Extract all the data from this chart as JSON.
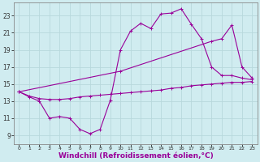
{
  "background_color": "#d0ecf0",
  "grid_color": "#c0dde0",
  "line_color": "#990099",
  "xlabel": "Windchill (Refroidissement éolien,°C)",
  "xlabel_fontsize": 6.5,
  "ytick_values": [
    9,
    11,
    13,
    15,
    17,
    19,
    21,
    23
  ],
  "xlim": [
    -0.5,
    23.5
  ],
  "ylim": [
    8.0,
    24.5
  ],
  "xtick_values": [
    0,
    1,
    2,
    3,
    4,
    5,
    6,
    7,
    8,
    9,
    10,
    11,
    12,
    13,
    14,
    15,
    16,
    17,
    18,
    19,
    20,
    21,
    22,
    23
  ],
  "lines": [
    {
      "x": [
        0,
        1,
        2,
        3,
        4,
        5,
        6,
        7,
        8,
        9,
        10,
        11,
        12,
        13,
        14,
        15,
        16,
        17,
        18,
        19,
        20,
        21,
        22,
        23
      ],
      "y": [
        14.1,
        13.6,
        13.3,
        13.2,
        13.2,
        13.3,
        13.5,
        13.6,
        13.7,
        13.8,
        13.9,
        14.0,
        14.1,
        14.2,
        14.3,
        14.5,
        14.6,
        14.8,
        14.9,
        15.0,
        15.1,
        15.2,
        15.2,
        15.3
      ]
    },
    {
      "x": [
        0,
        1,
        2,
        3,
        4,
        5,
        6,
        7,
        8,
        9,
        10,
        11,
        12,
        13,
        14,
        15,
        16,
        17,
        18,
        19,
        20,
        21,
        22,
        23
      ],
      "y": [
        14.1,
        13.5,
        13.0,
        11.0,
        11.2,
        11.0,
        9.7,
        9.2,
        9.7,
        13.1,
        19.0,
        21.2,
        22.1,
        21.5,
        23.2,
        23.3,
        23.8,
        22.0,
        20.3,
        17.0,
        16.0,
        16.0,
        15.7,
        15.5
      ]
    },
    {
      "x": [
        0,
        10,
        19,
        20,
        21,
        22,
        23
      ],
      "y": [
        14.1,
        16.5,
        20.0,
        20.3,
        21.9,
        17.0,
        15.7
      ]
    }
  ]
}
